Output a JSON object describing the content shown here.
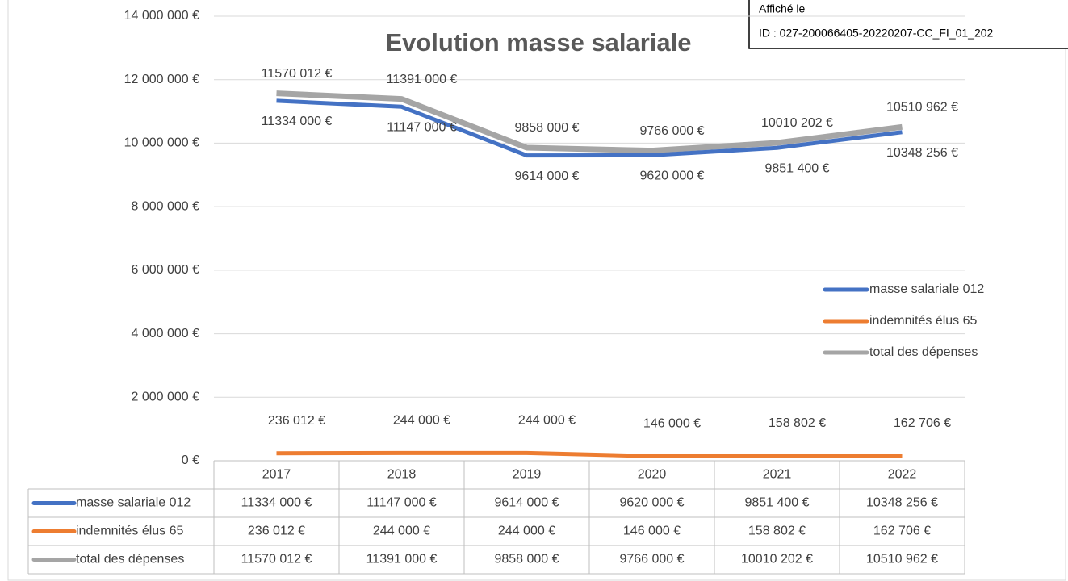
{
  "chart_data": {
    "type": "line",
    "title": "Evolution masse salariale",
    "categories": [
      "2017",
      "2018",
      "2019",
      "2020",
      "2021",
      "2022"
    ],
    "series": [
      {
        "name": "masse salariale 012",
        "color": "#4472c4",
        "values": [
          11334000,
          11147000,
          9614000,
          9620000,
          9851400,
          10348256
        ],
        "value_labels": [
          "11334 000 €",
          "11147 000 €",
          "9614 000 €",
          "9620 000 €",
          "9851 400 €",
          "10348 256 €"
        ]
      },
      {
        "name": "indemnités élus 65",
        "color": "#ed7d31",
        "values": [
          236012,
          244000,
          244000,
          146000,
          158802,
          162706
        ],
        "value_labels": [
          "236 012 €",
          "244 000 €",
          "244 000 €",
          "146 000 €",
          "158 802 €",
          "162 706 €"
        ]
      },
      {
        "name": "total des dépenses",
        "color": "#a5a5a5",
        "values": [
          11570012,
          11391000,
          9858000,
          9766000,
          10010202,
          10510962
        ],
        "value_labels": [
          "11570 012 €",
          "11391 000 €",
          "9858 000 €",
          "9766 000 €",
          "10010 202 €",
          "10510 962 €"
        ]
      }
    ],
    "ylim": [
      0,
      14000000
    ],
    "yticks": [
      {
        "value": 0,
        "label": "0 €"
      },
      {
        "value": 2000000,
        "label": "2 000 000 €"
      },
      {
        "value": 4000000,
        "label": "4 000 000 €"
      },
      {
        "value": 6000000,
        "label": "6 000 000 €"
      },
      {
        "value": 8000000,
        "label": "8 000 000 €"
      },
      {
        "value": 10000000,
        "label": "10 000 000 €"
      },
      {
        "value": 12000000,
        "label": "12 000 000 €"
      },
      {
        "value": 14000000,
        "label": "14 000 000 €"
      }
    ],
    "grid": true,
    "legend": "right",
    "data_table": true
  },
  "stamp": {
    "lines": [
      "Affiché le",
      "ID : 027-200066405-20220207-CC_FI_01_202"
    ]
  }
}
